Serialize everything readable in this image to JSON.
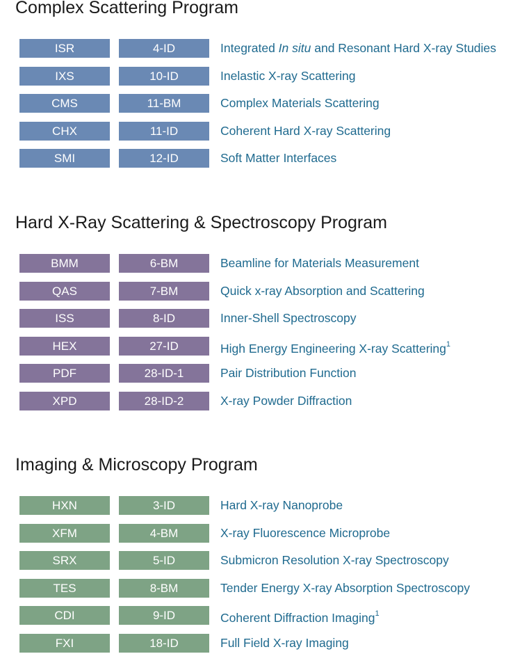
{
  "sections": [
    {
      "title": "Complex Scattering Program",
      "color": "#6a89b4",
      "rows": [
        {
          "abbr": "ISR",
          "id": "4-ID",
          "name_pre": "Integrated ",
          "name_italic": "In situ",
          "name_post": " and Resonant Hard X-ray Studies",
          "sup": ""
        },
        {
          "abbr": "IXS",
          "id": "10-ID",
          "name_pre": "Inelastic X-ray Scattering",
          "name_italic": "",
          "name_post": "",
          "sup": ""
        },
        {
          "abbr": "CMS",
          "id": "11-BM",
          "name_pre": "Complex Materials Scattering",
          "name_italic": "",
          "name_post": "",
          "sup": ""
        },
        {
          "abbr": "CHX",
          "id": "11-ID",
          "name_pre": "Coherent Hard X-ray Scattering",
          "name_italic": "",
          "name_post": "",
          "sup": ""
        },
        {
          "abbr": "SMI",
          "id": "12-ID",
          "name_pre": "Soft Matter Interfaces",
          "name_italic": "",
          "name_post": "",
          "sup": ""
        }
      ]
    },
    {
      "title": "Hard X-Ray Scattering & Spectroscopy Program",
      "color": "#84749a",
      "rows": [
        {
          "abbr": "BMM",
          "id": "6-BM",
          "name_pre": "Beamline for Materials Measurement",
          "name_italic": "",
          "name_post": "",
          "sup": ""
        },
        {
          "abbr": "QAS",
          "id": "7-BM",
          "name_pre": "Quick x-ray Absorption and Scattering",
          "name_italic": "",
          "name_post": "",
          "sup": ""
        },
        {
          "abbr": "ISS",
          "id": "8-ID",
          "name_pre": "Inner-Shell Spectroscopy",
          "name_italic": "",
          "name_post": "",
          "sup": ""
        },
        {
          "abbr": "HEX",
          "id": "27-ID",
          "name_pre": "High Energy Engineering X-ray Scattering",
          "name_italic": "",
          "name_post": "",
          "sup": "1"
        },
        {
          "abbr": "PDF",
          "id": "28-ID-1",
          "name_pre": "Pair Distribution Function",
          "name_italic": "",
          "name_post": "",
          "sup": ""
        },
        {
          "abbr": "XPD",
          "id": "28-ID-2",
          "name_pre": "X-ray Powder Diffraction",
          "name_italic": "",
          "name_post": "",
          "sup": ""
        }
      ]
    },
    {
      "title": "Imaging & Microscopy Program",
      "color": "#7ea385",
      "rows": [
        {
          "abbr": "HXN",
          "id": "3-ID",
          "name_pre": "Hard X-ray Nanoprobe",
          "name_italic": "",
          "name_post": "",
          "sup": ""
        },
        {
          "abbr": "XFM",
          "id": "4-BM",
          "name_pre": "X-ray Fluorescence Microprobe",
          "name_italic": "",
          "name_post": "",
          "sup": ""
        },
        {
          "abbr": "SRX",
          "id": "5-ID",
          "name_pre": "Submicron Resolution X-ray Spectroscopy",
          "name_italic": "",
          "name_post": "",
          "sup": ""
        },
        {
          "abbr": "TES",
          "id": "8-BM",
          "name_pre": "Tender Energy X-ray Absorption Spectroscopy",
          "name_italic": "",
          "name_post": "",
          "sup": ""
        },
        {
          "abbr": "CDI",
          "id": "9-ID",
          "name_pre": "Coherent Diffraction Imaging",
          "name_italic": "",
          "name_post": "",
          "sup": "1"
        },
        {
          "abbr": "FXI",
          "id": "18-ID",
          "name_pre": "Full Field X-ray Imaging",
          "name_italic": "",
          "name_post": "",
          "sup": ""
        }
      ]
    }
  ]
}
